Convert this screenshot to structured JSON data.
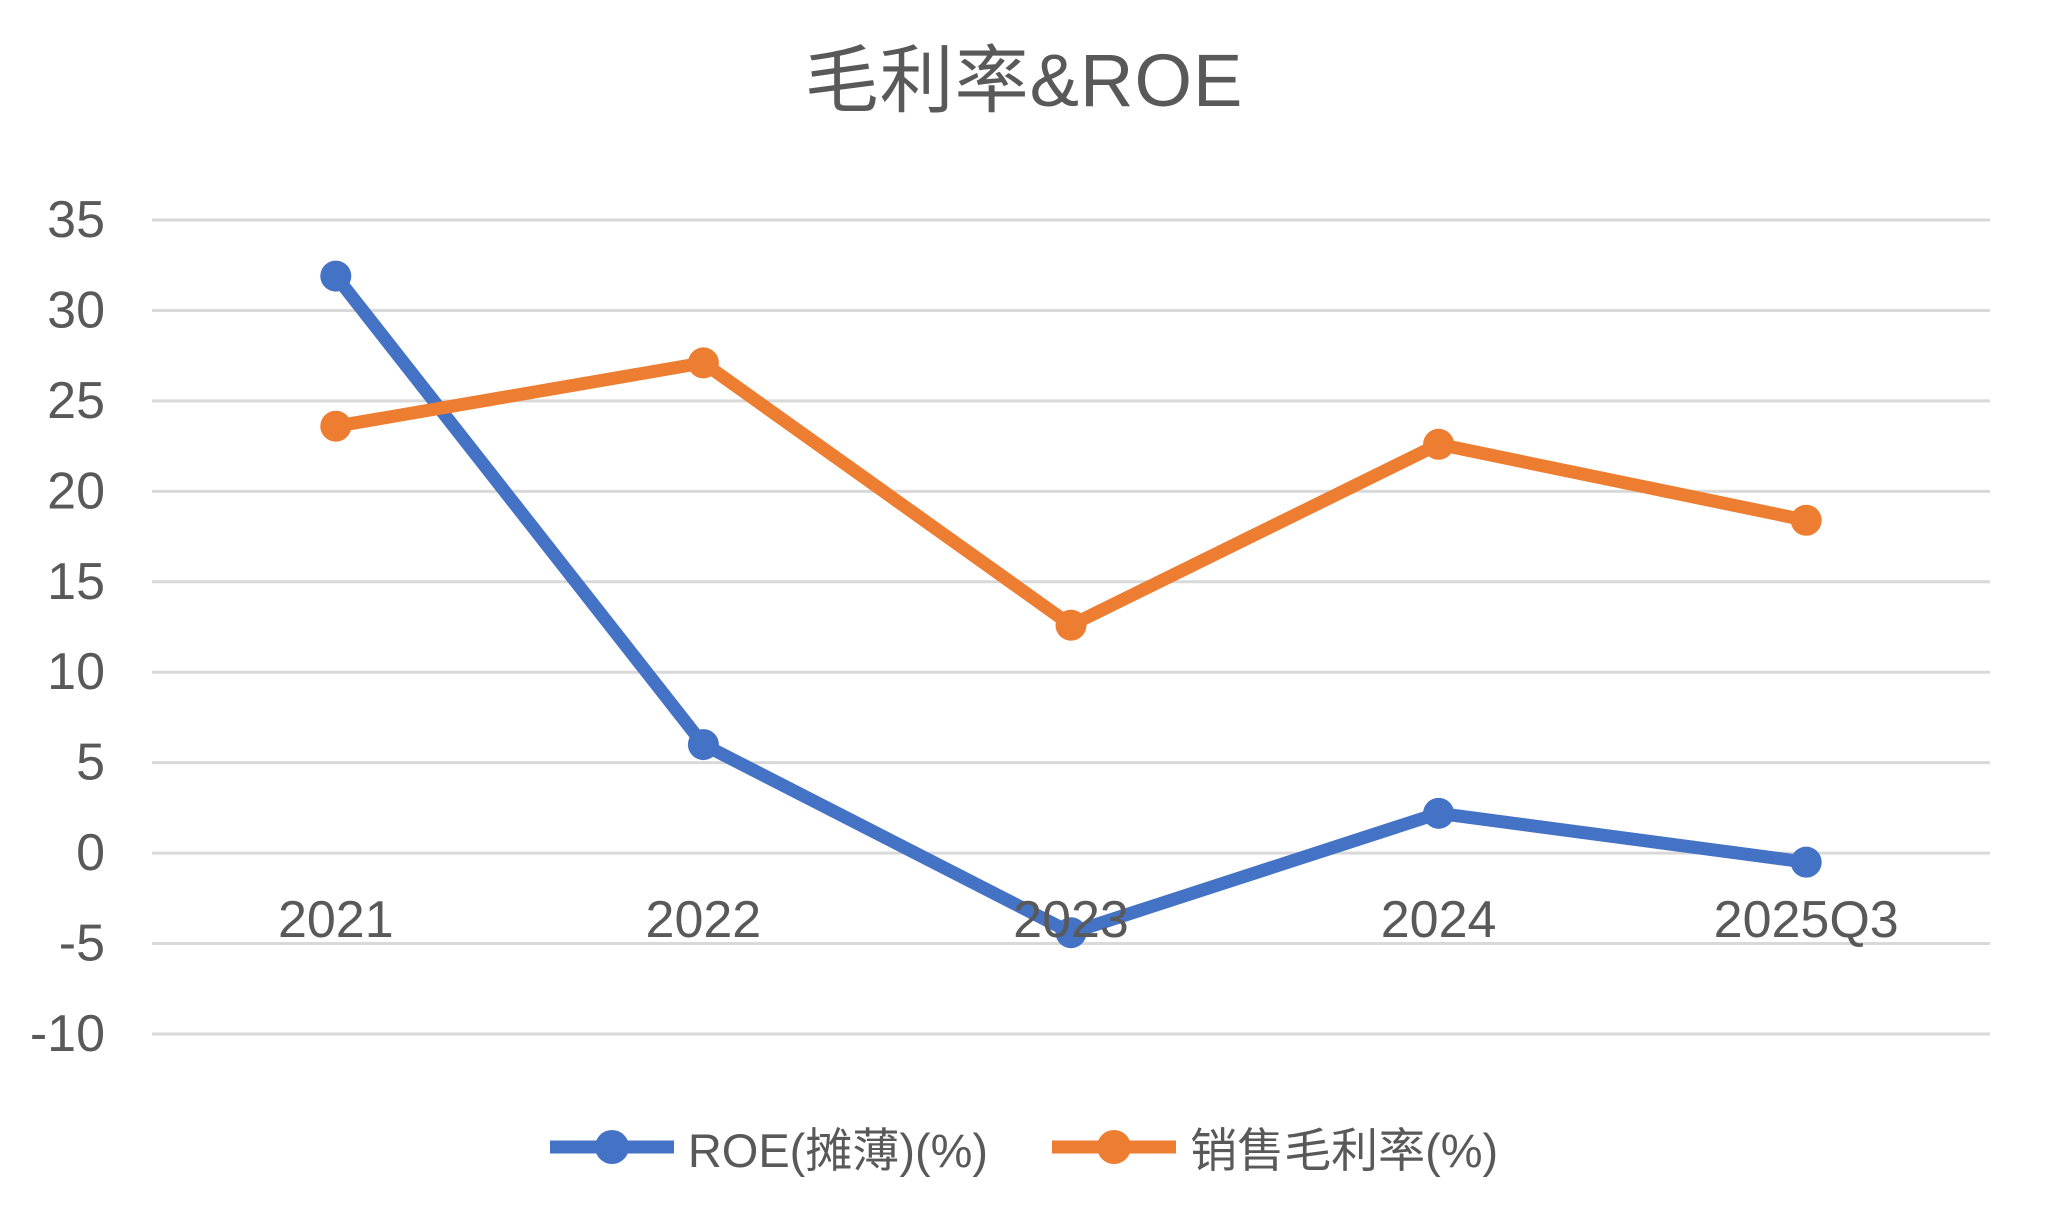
{
  "chart": {
    "title": "毛利率&ROE"
  },
  "chart_data": {
    "type": "line",
    "title": "毛利率&ROE",
    "xlabel": "",
    "ylabel": "",
    "categories": [
      "2021",
      "2022",
      "2023",
      "2024",
      "2025Q3"
    ],
    "series": [
      {
        "name": "ROE(摊薄)(%)",
        "color": "#4472C4",
        "values": [
          31.9,
          6.0,
          -4.4,
          2.2,
          -0.5
        ]
      },
      {
        "name": "销售毛利率(%)",
        "color": "#ED7D31",
        "values": [
          23.6,
          27.1,
          12.6,
          22.6,
          18.4
        ]
      }
    ],
    "ylim": [
      -10,
      35
    ],
    "y_ticks": [
      35,
      30,
      25,
      20,
      15,
      10,
      5,
      0,
      -5,
      -10
    ],
    "grid": true,
    "legend_position": "bottom",
    "axis_crosses_at": 0,
    "colors": {
      "gridline": "#D9D9D9",
      "text": "#595959",
      "background": "#FFFFFF"
    }
  }
}
